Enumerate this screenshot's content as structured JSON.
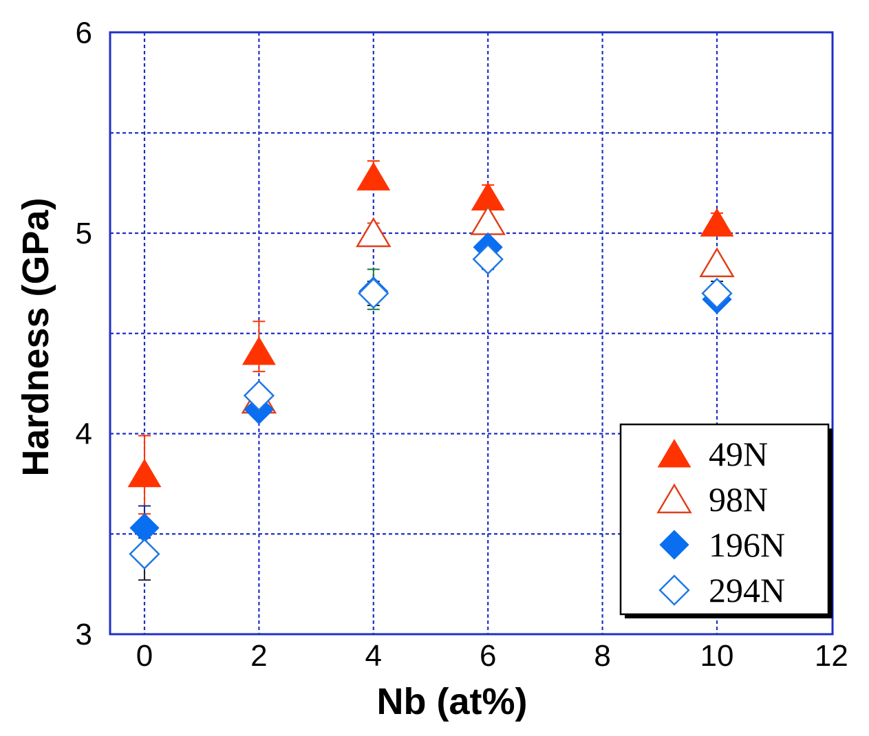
{
  "chart_data": {
    "type": "scatter",
    "xlabel": "Nb (at%)",
    "ylabel": "Hardness (GPa)",
    "xlim": [
      -0.6,
      12
    ],
    "ylim": [
      3,
      6
    ],
    "xticks": [
      "0",
      "2",
      "4",
      "6",
      "8",
      "10",
      "12"
    ],
    "yticks": [
      "3",
      "4",
      "5",
      "6"
    ],
    "grid": true,
    "legend_position": "bottom-right",
    "series": [
      {
        "name": "49N",
        "marker": "triangle-filled",
        "color": "#ff3300",
        "points": [
          {
            "x": 0,
            "y": 3.8,
            "err_low": 3.6,
            "err_high": 3.99
          },
          {
            "x": 2,
            "y": 4.41,
            "err_low": 4.31,
            "err_high": 4.56
          },
          {
            "x": 4,
            "y": 5.28,
            "err_low": 5.22,
            "err_high": 5.36
          },
          {
            "x": 6,
            "y": 5.18,
            "err_low": 5.12,
            "err_high": 5.24
          },
          {
            "x": 10,
            "y": 5.05,
            "err_low": 5.0,
            "err_high": 5.1
          }
        ]
      },
      {
        "name": "98N",
        "marker": "triangle-open",
        "color": "#e0401a",
        "points": [
          {
            "x": 2,
            "y": 4.17
          },
          {
            "x": 4,
            "y": 5.0,
            "err_low": 4.95,
            "err_high": 5.05
          },
          {
            "x": 6,
            "y": 5.06
          },
          {
            "x": 10,
            "y": 4.85
          }
        ]
      },
      {
        "name": "196N",
        "marker": "diamond-filled",
        "color": "#0a6ef0",
        "points": [
          {
            "x": 0,
            "y": 3.53,
            "err_low": 3.48,
            "err_high": 3.64
          },
          {
            "x": 2,
            "y": 4.12
          },
          {
            "x": 4,
            "y": 4.71,
            "err_low": 4.62,
            "err_high": 4.82
          },
          {
            "x": 6,
            "y": 4.93
          },
          {
            "x": 10,
            "y": 4.67
          }
        ]
      },
      {
        "name": "294N",
        "marker": "diamond-open",
        "color": "#1e78e6",
        "points": [
          {
            "x": 0,
            "y": 3.4,
            "err_low": 3.27,
            "err_high": 3.5
          },
          {
            "x": 2,
            "y": 4.19
          },
          {
            "x": 4,
            "y": 4.7,
            "err_low": 4.64,
            "err_high": 4.76
          },
          {
            "x": 6,
            "y": 4.87,
            "err_low": 4.82,
            "err_high": 4.92
          },
          {
            "x": 10,
            "y": 4.7,
            "err_low": 4.64,
            "err_high": 4.76
          }
        ]
      }
    ],
    "colors": {
      "frame": "#1f2fc7",
      "grid": "#1f2fc7",
      "errorbar_dark": "#222222",
      "errorbar_green": "#1a7a3a"
    }
  }
}
